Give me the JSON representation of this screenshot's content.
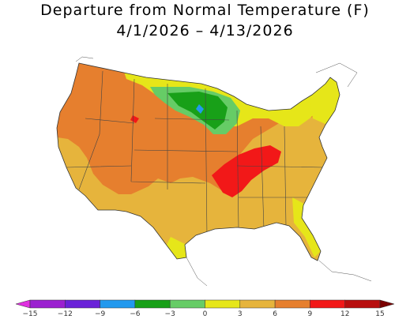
{
  "title": {
    "line1": "Departure from Normal Temperature (F)",
    "line2": "4/1/2026 – 4/13/2026"
  },
  "legend": {
    "bins": [
      {
        "color": "#e030e0"
      },
      {
        "color": "#9b20d0"
      },
      {
        "color": "#6a22d8"
      },
      {
        "color": "#2299ee"
      },
      {
        "color": "#18a018"
      },
      {
        "color": "#66cc66"
      },
      {
        "color": "#e6e619"
      },
      {
        "color": "#e6b43c"
      },
      {
        "color": "#e67f2e"
      },
      {
        "color": "#f21818"
      },
      {
        "color": "#b80e0e"
      },
      {
        "color": "#7a0000"
      }
    ],
    "ticks": [
      "−15",
      "−12",
      "−9",
      "−6",
      "−3",
      "0",
      "3",
      "6",
      "9",
      "12",
      "15"
    ]
  },
  "map": {
    "colors": {
      "orange": "#e6b43c",
      "dark_orange": "#e67f2e",
      "yellow": "#e6e619",
      "light_green": "#66cc66",
      "green": "#18a018",
      "red": "#f21818",
      "blue": "#2299ee",
      "border": "#444444"
    }
  }
}
